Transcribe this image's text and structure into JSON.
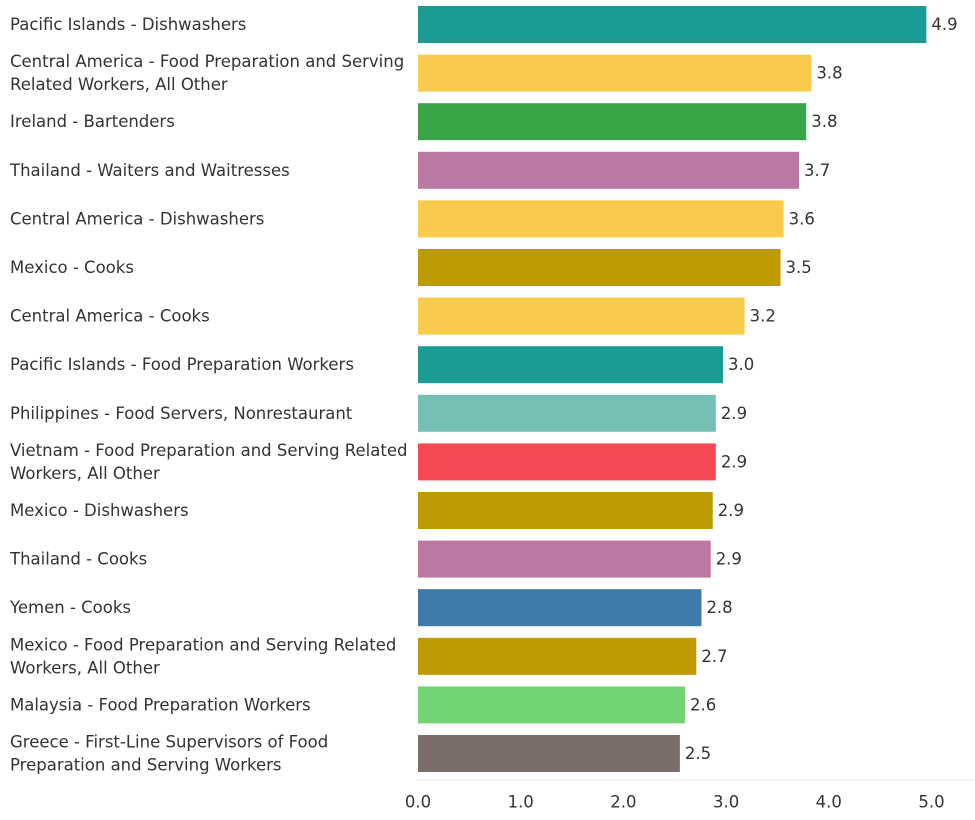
{
  "chart_data": {
    "type": "bar",
    "orientation": "horizontal",
    "title": "",
    "xlabel": "",
    "ylabel": "",
    "xlim": [
      0,
      5.4
    ],
    "grid": false,
    "x_ticks": [
      "0.0",
      "1.0",
      "2.0",
      "3.0",
      "4.0",
      "5.0"
    ],
    "bars": [
      {
        "label": "Pacific Islands - Dishwashers",
        "value": 4.95,
        "value_label": "4.9",
        "color": "#1a9b93"
      },
      {
        "label": "Central America - Food Preparation and Serving Related Workers, All Other",
        "value": 3.83,
        "value_label": "3.8",
        "color": "#f8cb4c"
      },
      {
        "label": "Ireland - Bartenders",
        "value": 3.78,
        "value_label": "3.8",
        "color": "#3aa546"
      },
      {
        "label": "Thailand - Waiters and Waitresses",
        "value": 3.71,
        "value_label": "3.7",
        "color": "#ba78a3"
      },
      {
        "label": "Central America - Dishwashers",
        "value": 3.56,
        "value_label": "3.6",
        "color": "#f8cb4c"
      },
      {
        "label": "Mexico - Cooks",
        "value": 3.53,
        "value_label": "3.5",
        "color": "#bd9a00"
      },
      {
        "label": "Central America - Cooks",
        "value": 3.18,
        "value_label": "3.2",
        "color": "#f8cb4c"
      },
      {
        "label": "Pacific Islands - Food Preparation Workers",
        "value": 2.97,
        "value_label": "3.0",
        "color": "#1a9b93"
      },
      {
        "label": "Philippines - Food Servers, Nonrestaurant",
        "value": 2.9,
        "value_label": "2.9",
        "color": "#76bfb5"
      },
      {
        "label": "Vietnam - Food Preparation and Serving Related Workers, All Other",
        "value": 2.9,
        "value_label": "2.9",
        "color": "#f54a54"
      },
      {
        "label": "Mexico - Dishwashers",
        "value": 2.87,
        "value_label": "2.9",
        "color": "#bd9a00"
      },
      {
        "label": "Thailand - Cooks",
        "value": 2.85,
        "value_label": "2.9",
        "color": "#ba78a3"
      },
      {
        "label": "Yemen - Cooks",
        "value": 2.76,
        "value_label": "2.8",
        "color": "#3e7aab"
      },
      {
        "label": "Mexico - Food Preparation and Serving Related Workers, All Other",
        "value": 2.71,
        "value_label": "2.7",
        "color": "#bd9a00"
      },
      {
        "label": "Malaysia - Food Preparation Workers",
        "value": 2.6,
        "value_label": "2.6",
        "color": "#72d573"
      },
      {
        "label": "Greece - First-Line Supervisors of Food Preparation and Serving Workers",
        "value": 2.55,
        "value_label": "2.5",
        "color": "#7a6d6a"
      }
    ]
  }
}
